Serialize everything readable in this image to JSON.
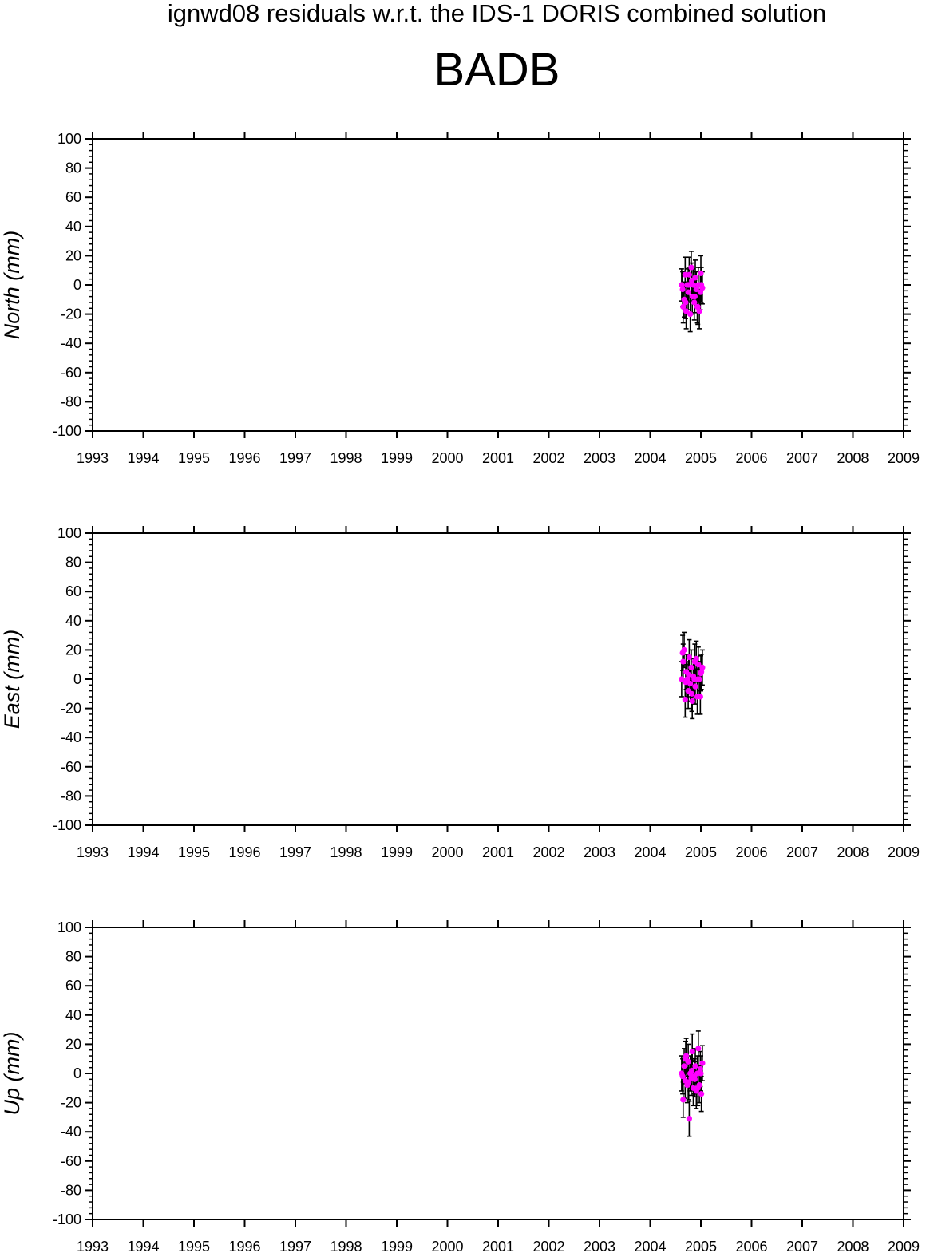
{
  "title": "ignwd08 residuals w.r.t. the IDS-1 DORIS combined solution",
  "station": "BADB",
  "colors": {
    "point": "#ff00ff",
    "errorbar": "#000000",
    "frame": "#000000"
  },
  "chart_data": [
    {
      "type": "scatter",
      "ylabel": "North (mm)",
      "xlim": [
        1993,
        2009
      ],
      "ylim": [
        -100,
        100
      ],
      "xticks": [
        "1993",
        "1994",
        "1995",
        "1996",
        "1997",
        "1998",
        "1999",
        "2000",
        "2001",
        "2002",
        "2003",
        "2004",
        "2005",
        "2006",
        "2007",
        "2008",
        "2009"
      ],
      "yticks": [
        "100",
        "80",
        "60",
        "40",
        "20",
        "0",
        "-20",
        "-40",
        "-60",
        "-80",
        "-100"
      ],
      "series": [
        {
          "x": [
            2004.62,
            2004.65,
            2004.67,
            2004.69,
            2004.71,
            2004.73,
            2004.75,
            2004.77,
            2004.79,
            2004.81,
            2004.83,
            2004.85,
            2004.87,
            2004.89,
            2004.91,
            2004.93,
            2004.95,
            2004.97,
            2004.99,
            2005.01,
            2005.03,
            2004.64,
            2004.7,
            2004.76,
            2004.82,
            2004.88,
            2004.94,
            2005.0
          ],
          "y": [
            0,
            -15,
            -10,
            7,
            -18,
            0,
            -5,
            7,
            -20,
            12,
            -8,
            0,
            -12,
            5,
            -3,
            -15,
            0,
            -18,
            -5,
            0,
            -2,
            -3,
            -12,
            0,
            3,
            -8,
            -15,
            8
          ],
          "err": [
            11,
            11,
            12,
            12,
            12,
            11,
            12,
            12,
            12,
            11,
            12,
            11,
            12,
            12,
            12,
            11,
            12,
            12,
            12,
            12,
            11,
            12,
            11,
            12,
            12,
            11,
            12,
            12
          ]
        }
      ]
    },
    {
      "type": "scatter",
      "ylabel": "East (mm)",
      "xlim": [
        1993,
        2009
      ],
      "ylim": [
        -100,
        100
      ],
      "xticks": [
        "1993",
        "1994",
        "1995",
        "1996",
        "1997",
        "1998",
        "1999",
        "2000",
        "2001",
        "2002",
        "2003",
        "2004",
        "2005",
        "2006",
        "2007",
        "2008",
        "2009"
      ],
      "yticks": [
        "100",
        "80",
        "60",
        "40",
        "20",
        "0",
        "-20",
        "-40",
        "-60",
        "-80",
        "-100"
      ],
      "series": [
        {
          "x": [
            2004.62,
            2004.65,
            2004.67,
            2004.69,
            2004.71,
            2004.73,
            2004.75,
            2004.77,
            2004.79,
            2004.81,
            2004.83,
            2004.85,
            2004.87,
            2004.89,
            2004.91,
            2004.93,
            2004.95,
            2004.97,
            2004.99,
            2005.01,
            2005.03,
            2004.64,
            2004.7,
            2004.76,
            2004.82,
            2004.88,
            2004.94,
            2005.0
          ],
          "y": [
            0,
            12,
            20,
            -14,
            5,
            0,
            -8,
            15,
            -3,
            8,
            -15,
            2,
            0,
            -5,
            14,
            -12,
            10,
            0,
            -12,
            5,
            8,
            18,
            -2,
            3,
            -10,
            12,
            0,
            4
          ],
          "err": [
            12,
            12,
            12,
            12,
            12,
            12,
            12,
            12,
            12,
            12,
            12,
            12,
            12,
            12,
            12,
            12,
            12,
            12,
            12,
            12,
            12,
            12,
            12,
            12,
            12,
            12,
            12,
            12
          ]
        }
      ]
    },
    {
      "type": "scatter",
      "ylabel": "Up (mm)",
      "xlim": [
        1993,
        2009
      ],
      "ylim": [
        -100,
        100
      ],
      "xticks": [
        "1993",
        "1994",
        "1995",
        "1996",
        "1997",
        "1998",
        "1999",
        "2000",
        "2001",
        "2002",
        "2003",
        "2004",
        "2005",
        "2006",
        "2007",
        "2008",
        "2009"
      ],
      "yticks": [
        "100",
        "80",
        "60",
        "40",
        "20",
        "0",
        "-20",
        "-40",
        "-60",
        "-80",
        "-100"
      ],
      "series": [
        {
          "x": [
            2004.62,
            2004.65,
            2004.67,
            2004.69,
            2004.71,
            2004.73,
            2004.75,
            2004.77,
            2004.79,
            2004.81,
            2004.83,
            2004.85,
            2004.87,
            2004.89,
            2004.91,
            2004.93,
            2004.95,
            2004.97,
            2004.99,
            2005.01,
            2005.03,
            2004.64,
            2004.7,
            2004.76,
            2004.82,
            2004.88,
            2004.94,
            2005.0
          ],
          "y": [
            0,
            -18,
            5,
            -5,
            12,
            -8,
            8,
            -31,
            0,
            -3,
            15,
            -10,
            -2,
            5,
            -12,
            0,
            17,
            -8,
            3,
            -14,
            7,
            -2,
            10,
            -6,
            2,
            -4,
            -10,
            0
          ],
          "err": [
            12,
            12,
            12,
            12,
            12,
            12,
            12,
            12,
            12,
            12,
            12,
            12,
            12,
            12,
            12,
            12,
            12,
            12,
            12,
            12,
            12,
            12,
            12,
            12,
            12,
            12,
            12,
            12
          ]
        }
      ]
    }
  ]
}
